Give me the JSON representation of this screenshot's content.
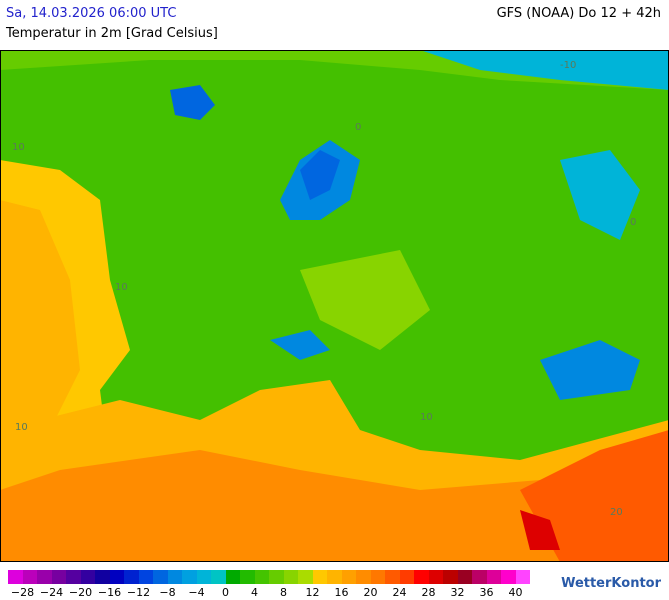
{
  "header": {
    "date": "Sa, 14.03.2026 06:00 UTC",
    "model": "GFS (NOAA) Do 12 + 42h",
    "subtitle": "Temperatur in 2m [Grad Celsius]"
  },
  "map": {
    "contour_labels": [
      "10",
      "10",
      "10",
      "-10",
      "0",
      "0",
      "20",
      "10"
    ]
  },
  "legend": {
    "labels": [
      "−28",
      "−24",
      "−20",
      "−16",
      "−12",
      "−8",
      "−4",
      "0",
      "4",
      "8",
      "12",
      "16",
      "20",
      "24",
      "28",
      "32",
      "36",
      "40"
    ],
    "colors": [
      "#dd00dd",
      "#bb00bb",
      "#9900aa",
      "#7700a0",
      "#5500a0",
      "#3300a0",
      "#1100a0",
      "#0000c0",
      "#0022d0",
      "#0044e0",
      "#0066e0",
      "#0088e0",
      "#00a0e0",
      "#00b4d8",
      "#00c4c4",
      "#00aa00",
      "#22bb00",
      "#44c400",
      "#66cc00",
      "#88d400",
      "#aadc00",
      "#ffc800",
      "#ffb400",
      "#ffa000",
      "#ff8c00",
      "#ff7800",
      "#ff5a00",
      "#ff3c00",
      "#ff0000",
      "#dd0000",
      "#bb0000",
      "#990022",
      "#bb0066",
      "#dd0099",
      "#ff00cc",
      "#ff44ff"
    ]
  },
  "brand": "WetterKontor"
}
